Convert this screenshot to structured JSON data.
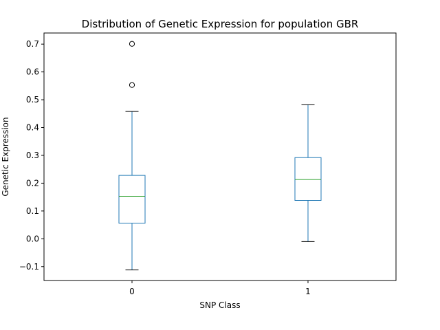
{
  "chart_data": {
    "type": "box",
    "title": "Distribution of Genetic Expression for population GBR",
    "xlabel": "SNP Class",
    "ylabel": "Genetic Expression",
    "ylim": [
      -0.15,
      0.74
    ],
    "yticks": [
      "−0.1",
      "0.0",
      "0.1",
      "0.2",
      "0.3",
      "0.4",
      "0.5",
      "0.6",
      "0.7"
    ],
    "ytick_values": [
      -0.1,
      0.0,
      0.1,
      0.2,
      0.3,
      0.4,
      0.5,
      0.6,
      0.7
    ],
    "categories": [
      "0",
      "1"
    ],
    "boxes": [
      {
        "category": "0",
        "whisker_low": -0.112,
        "q1": 0.056,
        "median": 0.153,
        "q3": 0.228,
        "whisker_high": 0.458,
        "outliers": [
          0.553,
          0.701
        ]
      },
      {
        "category": "1",
        "whisker_low": -0.01,
        "q1": 0.138,
        "median": 0.213,
        "q3": 0.292,
        "whisker_high": 0.482,
        "outliers": []
      }
    ],
    "colors": {
      "box": "#1f77b4",
      "median": "#2ca02c",
      "whisker_cap": "#000000",
      "outlier": "#000000"
    },
    "grid": false
  }
}
